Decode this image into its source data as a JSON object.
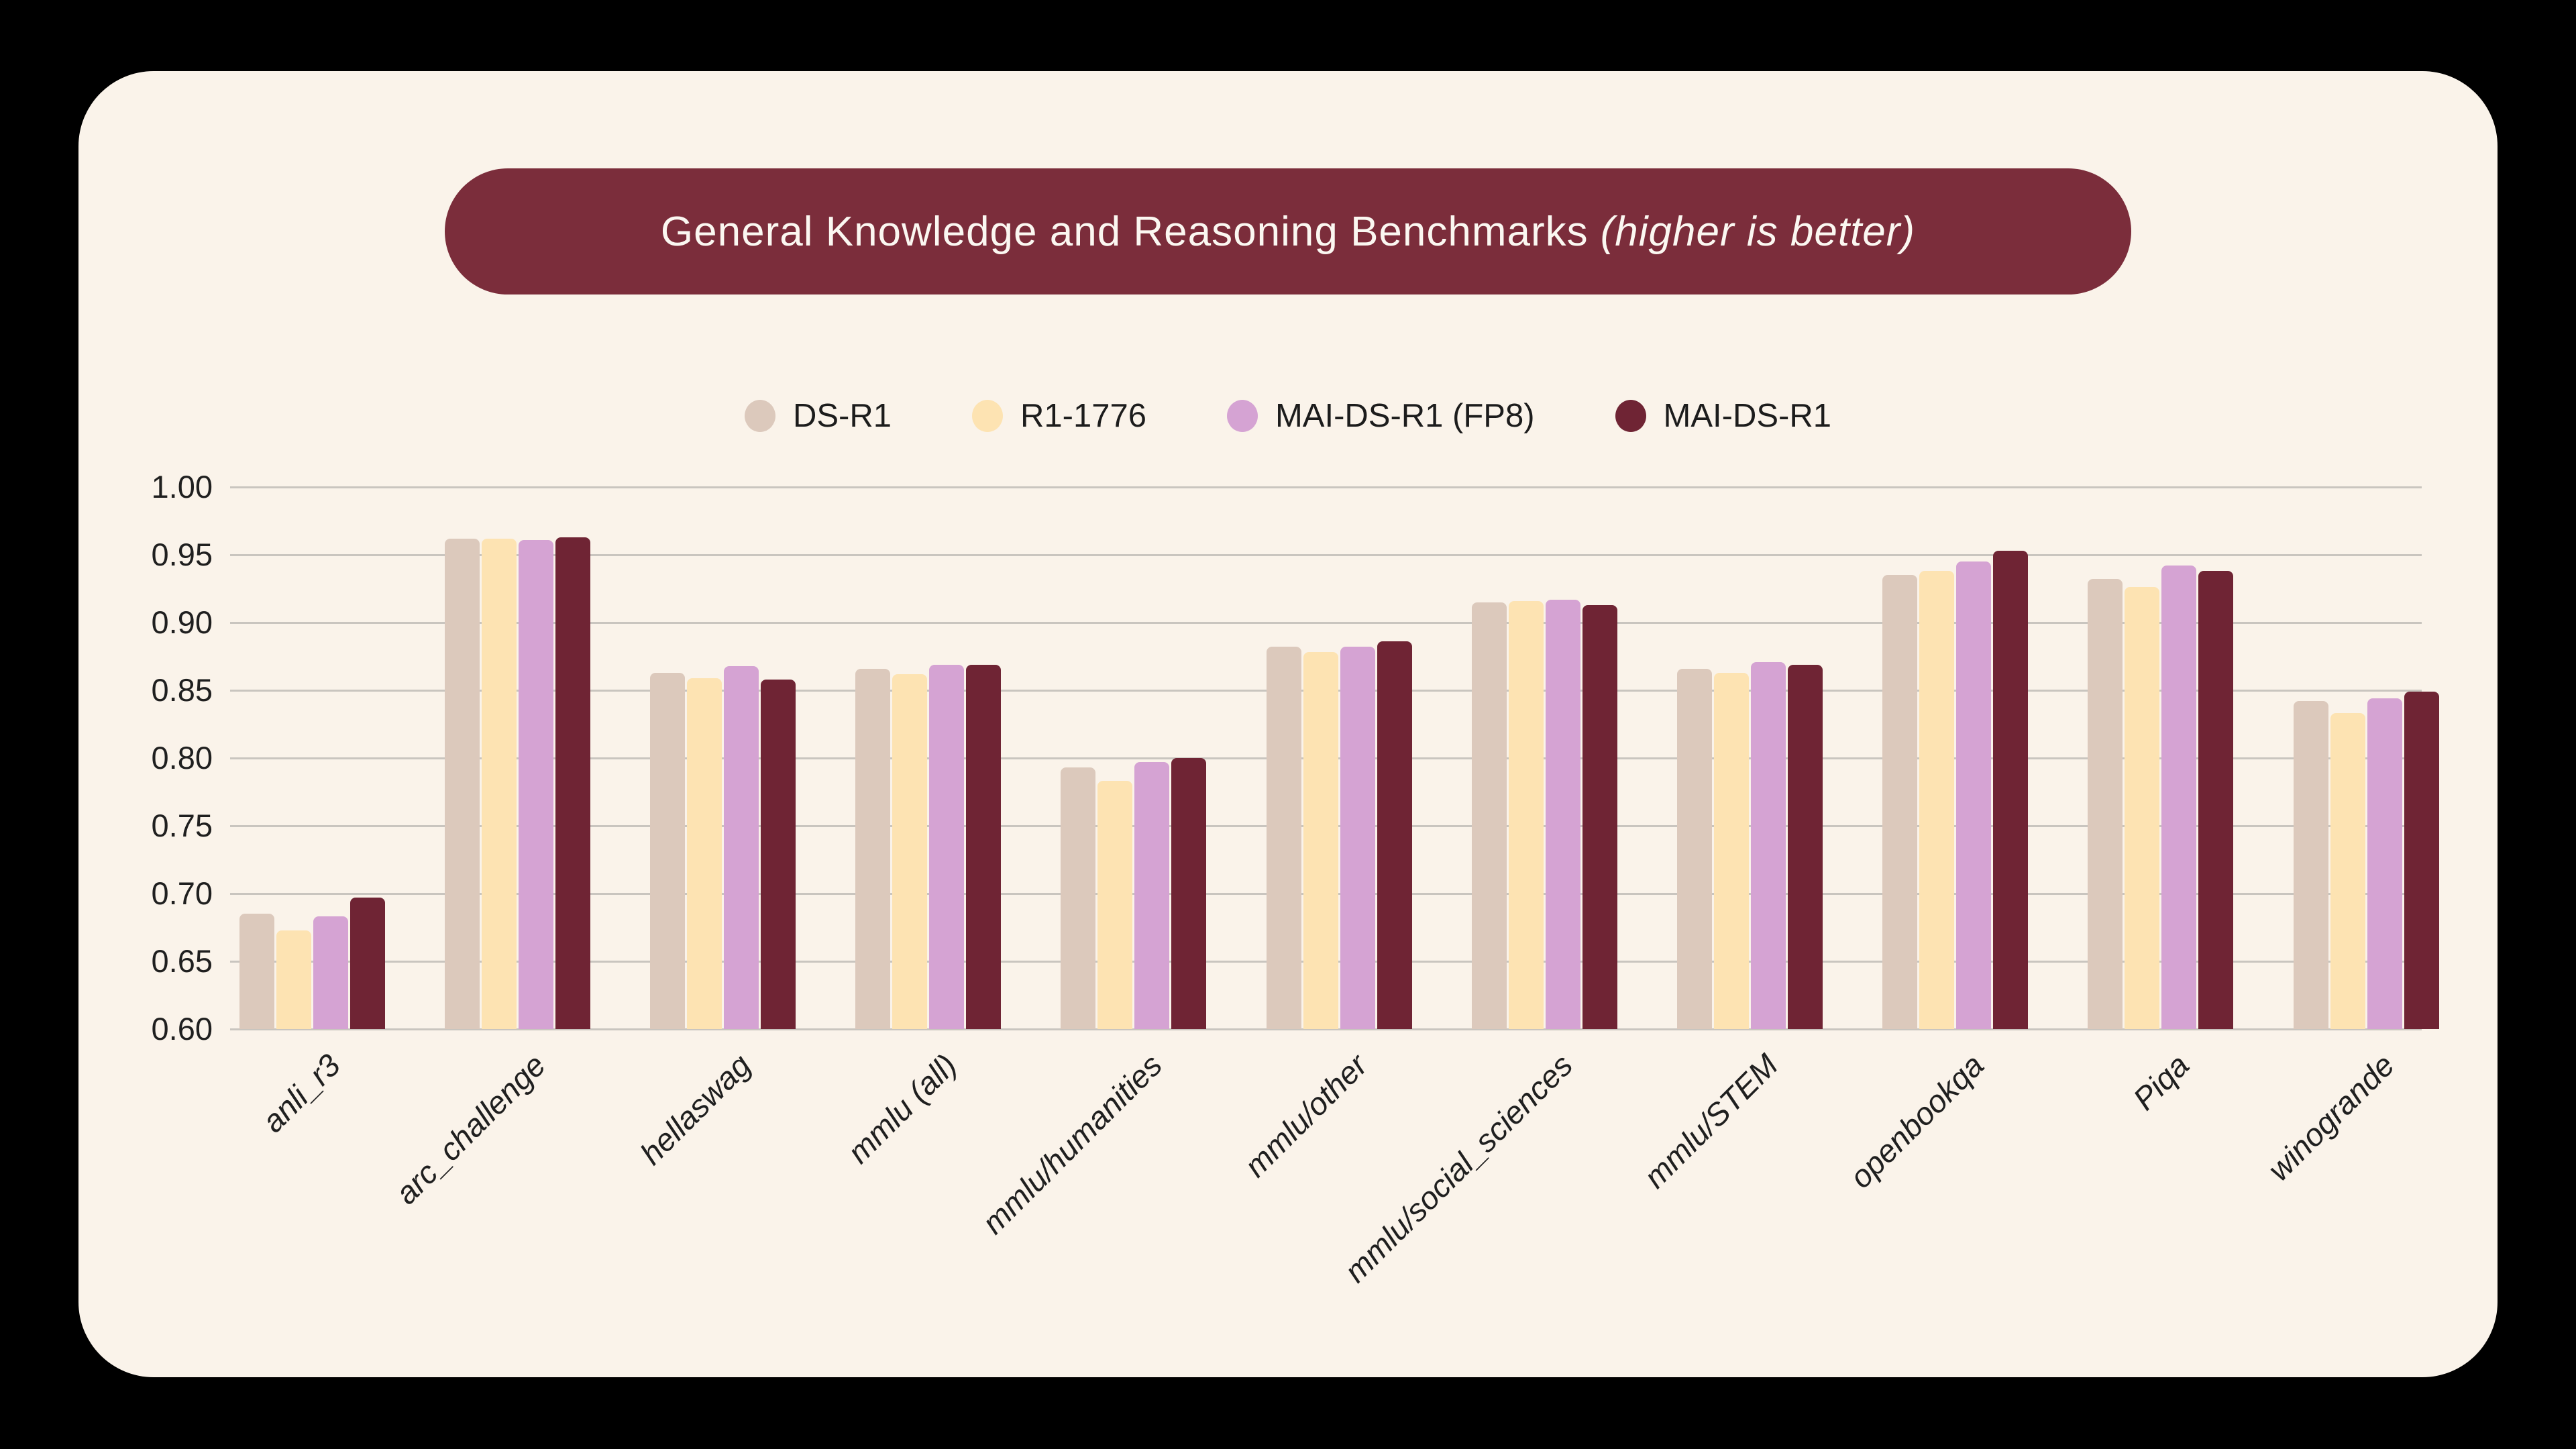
{
  "title": {
    "main": "General Knowledge and Reasoning Benchmarks",
    "note": "(higher is better)"
  },
  "banner_color": "#7b2d3b",
  "panel_color": "#faf3ea",
  "background_color": "#000000",
  "gridline_color": "#c9c5bf",
  "chart_data": {
    "type": "bar",
    "title": "General Knowledge and Reasoning Benchmarks (higher is better)",
    "xlabel": "",
    "ylabel": "",
    "ylim": [
      0.6,
      1.0
    ],
    "ytick_step": 0.05,
    "ytick_labels": [
      "0.60",
      "0.65",
      "0.70",
      "0.75",
      "0.80",
      "0.85",
      "0.90",
      "0.95",
      "1.00"
    ],
    "grid": true,
    "legend_position": "top-center",
    "categories": [
      "anli_r3",
      "arc_challenge",
      "hellaswag",
      "mmlu (all)",
      "mmlu/humanities",
      "mmlu/other",
      "mmlu/social_sciences",
      "mmlu/STEM",
      "openbookqa",
      "Piqa",
      "winogrande"
    ],
    "series": [
      {
        "name": "DS-R1",
        "color": "#dcc9bc",
        "values": [
          0.685,
          0.962,
          0.863,
          0.866,
          0.793,
          0.882,
          0.915,
          0.866,
          0.935,
          0.932,
          0.842
        ]
      },
      {
        "name": "R1-1776",
        "color": "#fde3b2",
        "values": [
          0.673,
          0.962,
          0.859,
          0.862,
          0.783,
          0.878,
          0.916,
          0.863,
          0.938,
          0.926,
          0.833
        ]
      },
      {
        "name": "MAI-DS-R1 (FP8)",
        "color": "#d5a3d3",
        "values": [
          0.683,
          0.961,
          0.868,
          0.869,
          0.797,
          0.882,
          0.917,
          0.871,
          0.945,
          0.942,
          0.844
        ]
      },
      {
        "name": "MAI-DS-R1",
        "color": "#6f2434",
        "values": [
          0.697,
          0.963,
          0.858,
          0.869,
          0.8,
          0.886,
          0.913,
          0.869,
          0.953,
          0.938,
          0.849
        ]
      }
    ]
  }
}
